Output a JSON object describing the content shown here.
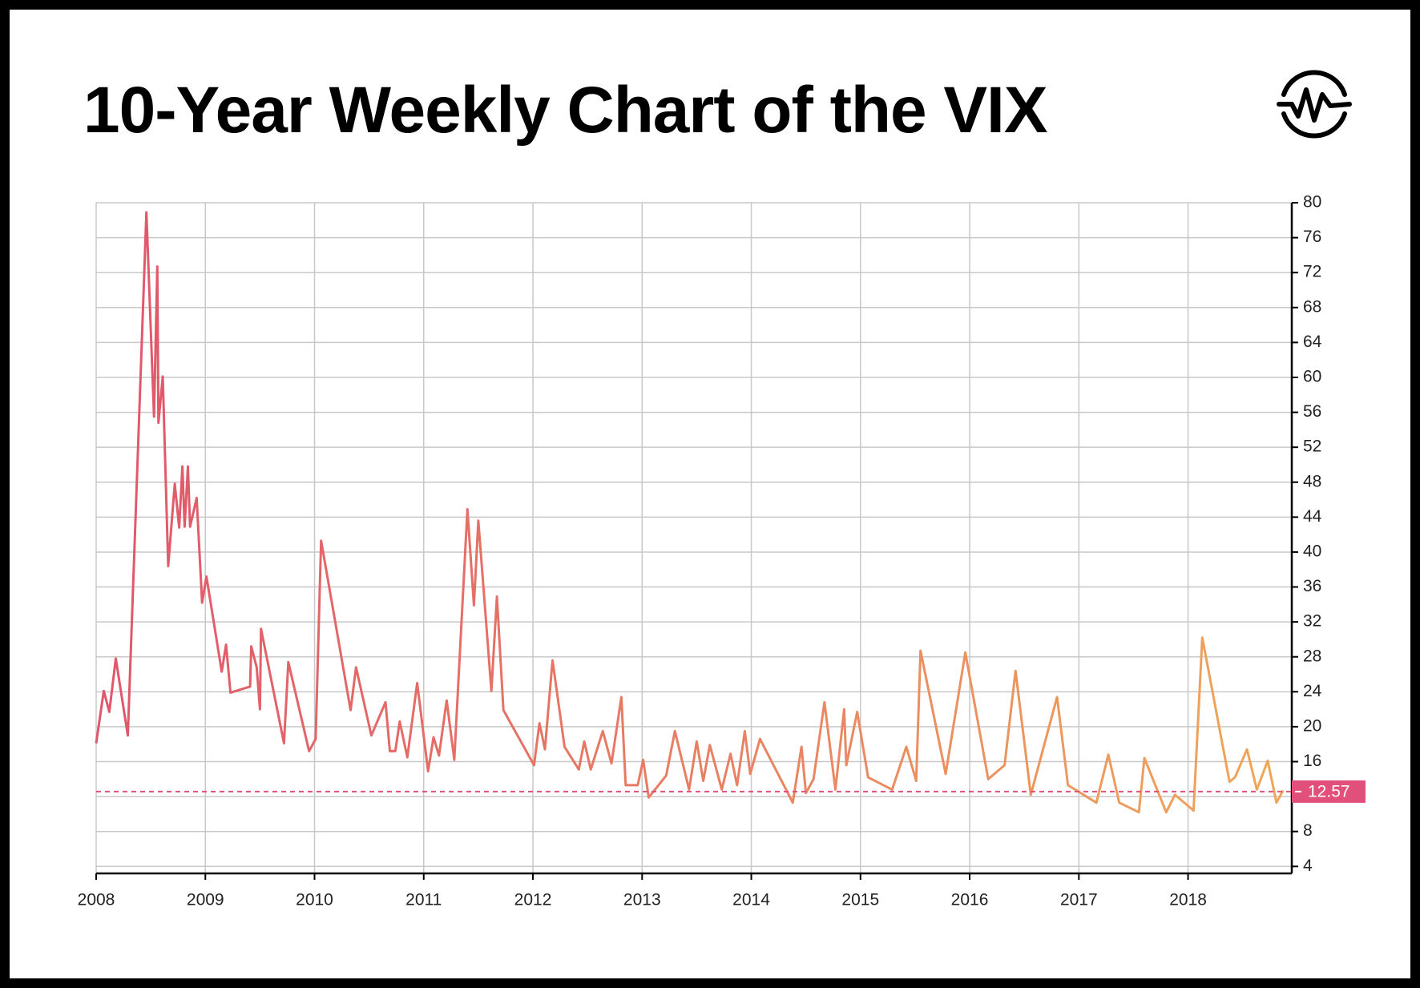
{
  "chart_data": {
    "type": "line",
    "title": "10-Year Weekly Chart of the VIX",
    "x": [
      2008.0,
      2008.07,
      2008.12,
      2008.18,
      2008.29,
      2008.46,
      2008.53,
      2008.56,
      2008.57,
      2008.61,
      2008.66,
      2008.72,
      2008.76,
      2008.79,
      2008.81,
      2008.84,
      2008.86,
      2008.92,
      2008.97,
      2009.01,
      2009.15,
      2009.19,
      2009.23,
      2009.41,
      2009.42,
      2009.47,
      2009.5,
      2009.51,
      2009.72,
      2009.76,
      2009.95,
      2010.01,
      2010.06,
      2010.33,
      2010.38,
      2010.52,
      2010.65,
      2010.69,
      2010.74,
      2010.78,
      2010.85,
      2010.94,
      2011.04,
      2011.09,
      2011.14,
      2011.21,
      2011.28,
      2011.4,
      2011.46,
      2011.5,
      2011.62,
      2011.67,
      2011.73,
      2012.01,
      2012.06,
      2012.11,
      2012.18,
      2012.29,
      2012.42,
      2012.47,
      2012.53,
      2012.64,
      2012.72,
      2012.81,
      2012.85,
      2012.96,
      2013.01,
      2013.06,
      2013.22,
      2013.3,
      2013.43,
      2013.5,
      2013.56,
      2013.62,
      2013.73,
      2013.81,
      2013.87,
      2013.94,
      2013.99,
      2014.08,
      2014.38,
      2014.46,
      2014.5,
      2014.57,
      2014.67,
      2014.77,
      2014.85,
      2014.87,
      2014.97,
      2015.07,
      2015.29,
      2015.42,
      2015.51,
      2015.55,
      2015.78,
      2015.96,
      2016.17,
      2016.32,
      2016.42,
      2016.56,
      2016.8,
      2016.9,
      2017.16,
      2017.27,
      2017.37,
      2017.55,
      2017.6,
      2017.8,
      2017.88,
      2018.05,
      2018.13,
      2018.38,
      2018.43,
      2018.54,
      2018.63,
      2018.73,
      2018.81,
      2018.87
    ],
    "values": [
      18.1,
      24.1,
      21.7,
      27.8,
      19.0,
      78.9,
      55.5,
      72.7,
      54.8,
      60.1,
      38.4,
      47.8,
      42.8,
      49.8,
      42.9,
      49.8,
      42.9,
      46.2,
      34.2,
      37.2,
      26.3,
      29.4,
      23.9,
      24.6,
      29.2,
      26.8,
      22.0,
      31.2,
      18.1,
      27.4,
      17.2,
      18.6,
      41.3,
      21.9,
      26.8,
      19.0,
      22.8,
      17.2,
      17.2,
      20.6,
      16.5,
      25.0,
      14.9,
      18.8,
      16.7,
      23.0,
      16.2,
      44.9,
      33.9,
      43.6,
      24.1,
      34.9,
      21.9,
      15.6,
      20.4,
      17.4,
      27.6,
      17.7,
      15.1,
      18.3,
      15.1,
      19.5,
      15.8,
      23.4,
      13.3,
      13.3,
      16.2,
      11.9,
      14.4,
      19.5,
      12.8,
      18.3,
      13.8,
      17.9,
      12.8,
      16.9,
      13.3,
      19.5,
      14.6,
      18.6,
      11.3,
      17.7,
      12.4,
      14.0,
      22.8,
      12.8,
      22.0,
      15.6,
      21.7,
      14.2,
      12.8,
      17.7,
      13.8,
      28.7,
      14.6,
      28.5,
      14.0,
      15.6,
      26.4,
      12.2,
      23.4,
      13.3,
      11.3,
      16.8,
      11.3,
      10.2,
      16.4,
      10.2,
      12.2,
      10.4,
      30.2,
      13.7,
      14.2,
      17.4,
      12.8,
      16.1,
      11.3,
      12.7
    ],
    "colors": [
      "#e0566c",
      "#f0a75a"
    ],
    "xlim": [
      2008,
      2018.95
    ],
    "xticks": [
      2008,
      2009,
      2010,
      2011,
      2012,
      2013,
      2014,
      2015,
      2016,
      2017,
      2018
    ],
    "ylim": [
      3.2,
      80
    ],
    "yticks": [
      4,
      8,
      12,
      16,
      20,
      24,
      28,
      32,
      36,
      40,
      44,
      48,
      52,
      56,
      60,
      64,
      68,
      72,
      76,
      80
    ],
    "grid": true,
    "reference_line": {
      "value": 12.57,
      "color": "#e0507a"
    }
  }
}
